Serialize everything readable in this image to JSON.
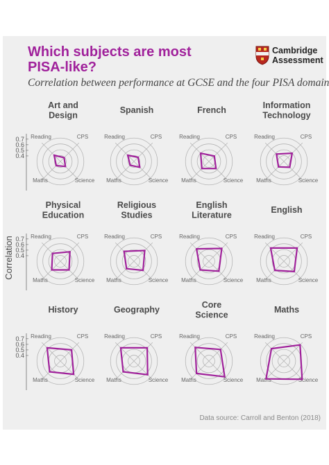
{
  "header": {
    "title": "Which subjects are most\nPISA-like?",
    "subtitle": "Correlation between performance at GCSE and the four PISA domains",
    "logo_text": "Cambridge\nAssessment",
    "source": "Data source: Carroll and Benton (2018)"
  },
  "colors": {
    "accent": "#a0219b",
    "grid": "#b5b5b5",
    "panel_bg": "#efefef",
    "text": "#4a4a4a"
  },
  "y_axis_label": "Correlation",
  "tick_labels": [
    "0.7",
    "0.6",
    "0.5",
    "0.4"
  ],
  "chart_data": {
    "type": "radar",
    "axes": [
      "Reading",
      "CPS",
      "Science",
      "Maths"
    ],
    "rlim": [
      0.3,
      0.75
    ],
    "rings": [
      0.4,
      0.5,
      0.6,
      0.7
    ],
    "panels": [
      {
        "title": "Art and\nDesign",
        "values": [
          0.45,
          0.39,
          0.42,
          0.4
        ]
      },
      {
        "title": "Spanish",
        "values": [
          0.45,
          0.4,
          0.44,
          0.39
        ]
      },
      {
        "title": "French",
        "values": [
          0.5,
          0.43,
          0.47,
          0.47
        ]
      },
      {
        "title": "Information\nTechnology",
        "values": [
          0.48,
          0.5,
          0.44,
          0.43
        ]
      },
      {
        "title": "Physical\nEducation",
        "values": [
          0.49,
          0.53,
          0.51,
          0.51
        ]
      },
      {
        "title": "Religious\nStudies",
        "values": [
          0.54,
          0.56,
          0.52,
          0.48
        ]
      },
      {
        "title": "English\nLiterature",
        "values": [
          0.6,
          0.61,
          0.54,
          0.51
        ]
      },
      {
        "title": "English",
        "values": [
          0.62,
          0.62,
          0.55,
          0.52
        ]
      },
      {
        "title": "History",
        "values": [
          0.62,
          0.57,
          0.62,
          0.56
        ]
      },
      {
        "title": "Geography",
        "values": [
          0.62,
          0.62,
          0.63,
          0.56
        ]
      },
      {
        "title": "Core\nScience",
        "values": [
          0.63,
          0.58,
          0.68,
          0.6
        ]
      },
      {
        "title": "Maths",
        "values": [
          0.6,
          0.69,
          0.74,
          0.73
        ]
      }
    ]
  }
}
